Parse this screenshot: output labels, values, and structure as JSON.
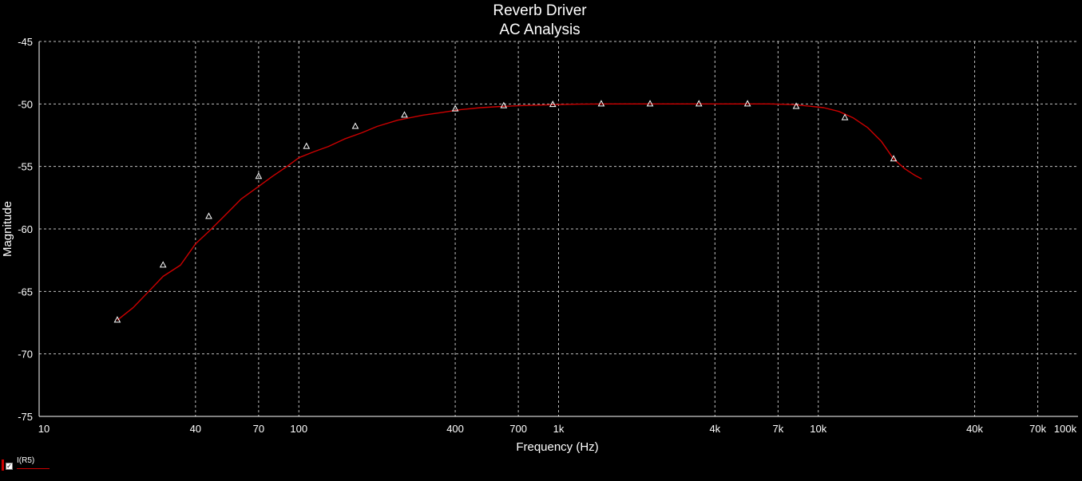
{
  "chart_data": {
    "type": "line",
    "title": "Reverb Driver",
    "subtitle": "AC Analysis",
    "xlabel": "Frequency (Hz)",
    "ylabel": "Magnitude",
    "xscale": "log",
    "xlim": [
      10,
      100000
    ],
    "ylim": [
      -75,
      -45
    ],
    "grid": true,
    "x_ticks": [
      {
        "value": 10,
        "label": "10"
      },
      {
        "value": 40,
        "label": "40"
      },
      {
        "value": 70,
        "label": "70"
      },
      {
        "value": 100,
        "label": "100"
      },
      {
        "value": 400,
        "label": "400"
      },
      {
        "value": 700,
        "label": "700"
      },
      {
        "value": 1000,
        "label": "1k"
      },
      {
        "value": 4000,
        "label": "4k"
      },
      {
        "value": 7000,
        "label": "7k"
      },
      {
        "value": 10000,
        "label": "10k"
      },
      {
        "value": 40000,
        "label": "40k"
      },
      {
        "value": 70000,
        "label": "70k"
      },
      {
        "value": 100000,
        "label": "100k"
      }
    ],
    "x_minor_grid": [
      20,
      30,
      50,
      60,
      80,
      90,
      200,
      300,
      500,
      600,
      800,
      900,
      2000,
      3000,
      5000,
      6000,
      8000,
      9000,
      20000,
      30000,
      50000,
      60000,
      80000,
      90000
    ],
    "y_ticks": [
      {
        "value": -45,
        "label": "-45"
      },
      {
        "value": -50,
        "label": "-50"
      },
      {
        "value": -55,
        "label": "-55"
      },
      {
        "value": -60,
        "label": "-60"
      },
      {
        "value": -65,
        "label": "-65"
      },
      {
        "value": -70,
        "label": "-70"
      },
      {
        "value": -75,
        "label": "-75"
      }
    ],
    "series": [
      {
        "name": "I(R5)",
        "color": "#cc0000",
        "marker": "triangle",
        "x": [
          20,
          23,
          27,
          30,
          35,
          40,
          45,
          51.5,
          60,
          70,
          79,
          90,
          100,
          115,
          130,
          150,
          175,
          200,
          240,
          300,
          350,
          420,
          500,
          600,
          680,
          800,
          1000,
          1200,
          1600,
          2000,
          2500,
          3000,
          3700,
          4500,
          5500,
          6500,
          8000,
          9500,
          10500,
          12000,
          13600,
          15500,
          17500,
          19500,
          21600,
          23500,
          25000
        ],
        "y": [
          -67.3,
          -66.3,
          -64.8,
          -63.8,
          -62.9,
          -61.2,
          -60.2,
          -59.0,
          -57.6,
          -56.6,
          -55.8,
          -55.0,
          -54.3,
          -53.8,
          -53.4,
          -52.8,
          -52.3,
          -51.8,
          -51.3,
          -50.9,
          -50.7,
          -50.45,
          -50.3,
          -50.2,
          -50.15,
          -50.1,
          -50.05,
          -50.02,
          -50.0,
          -50.0,
          -50.0,
          -50.0,
          -50.0,
          -50.0,
          -50.0,
          -50.0,
          -50.05,
          -50.2,
          -50.3,
          -50.6,
          -51.1,
          -51.9,
          -53.0,
          -54.4,
          -55.2,
          -55.7,
          -56.0
        ],
        "markers": [
          {
            "x": 20,
            "y": -67.3
          },
          {
            "x": 30,
            "y": -62.9
          },
          {
            "x": 45,
            "y": -59.0
          },
          {
            "x": 70,
            "y": -55.8
          },
          {
            "x": 107,
            "y": -53.4
          },
          {
            "x": 165,
            "y": -51.8
          },
          {
            "x": 255,
            "y": -50.9
          },
          {
            "x": 400,
            "y": -50.4
          },
          {
            "x": 615,
            "y": -50.15
          },
          {
            "x": 950,
            "y": -50.05
          },
          {
            "x": 1460,
            "y": -50.0
          },
          {
            "x": 2250,
            "y": -50.0
          },
          {
            "x": 3470,
            "y": -50.0
          },
          {
            "x": 5340,
            "y": -50.0
          },
          {
            "x": 8220,
            "y": -50.2
          },
          {
            "x": 12660,
            "y": -51.1
          },
          {
            "x": 19500,
            "y": -54.4
          }
        ]
      }
    ],
    "legend": {
      "position": "bottom-left",
      "label": "I(R5)",
      "checked": true
    }
  },
  "legend": {
    "label": "I(R5)",
    "check": "✓"
  },
  "colors": {
    "background": "#000000",
    "axis": "#ffffff",
    "grid": "#c0c0c0",
    "series": "#cc0000",
    "marker": "#ffffff"
  }
}
